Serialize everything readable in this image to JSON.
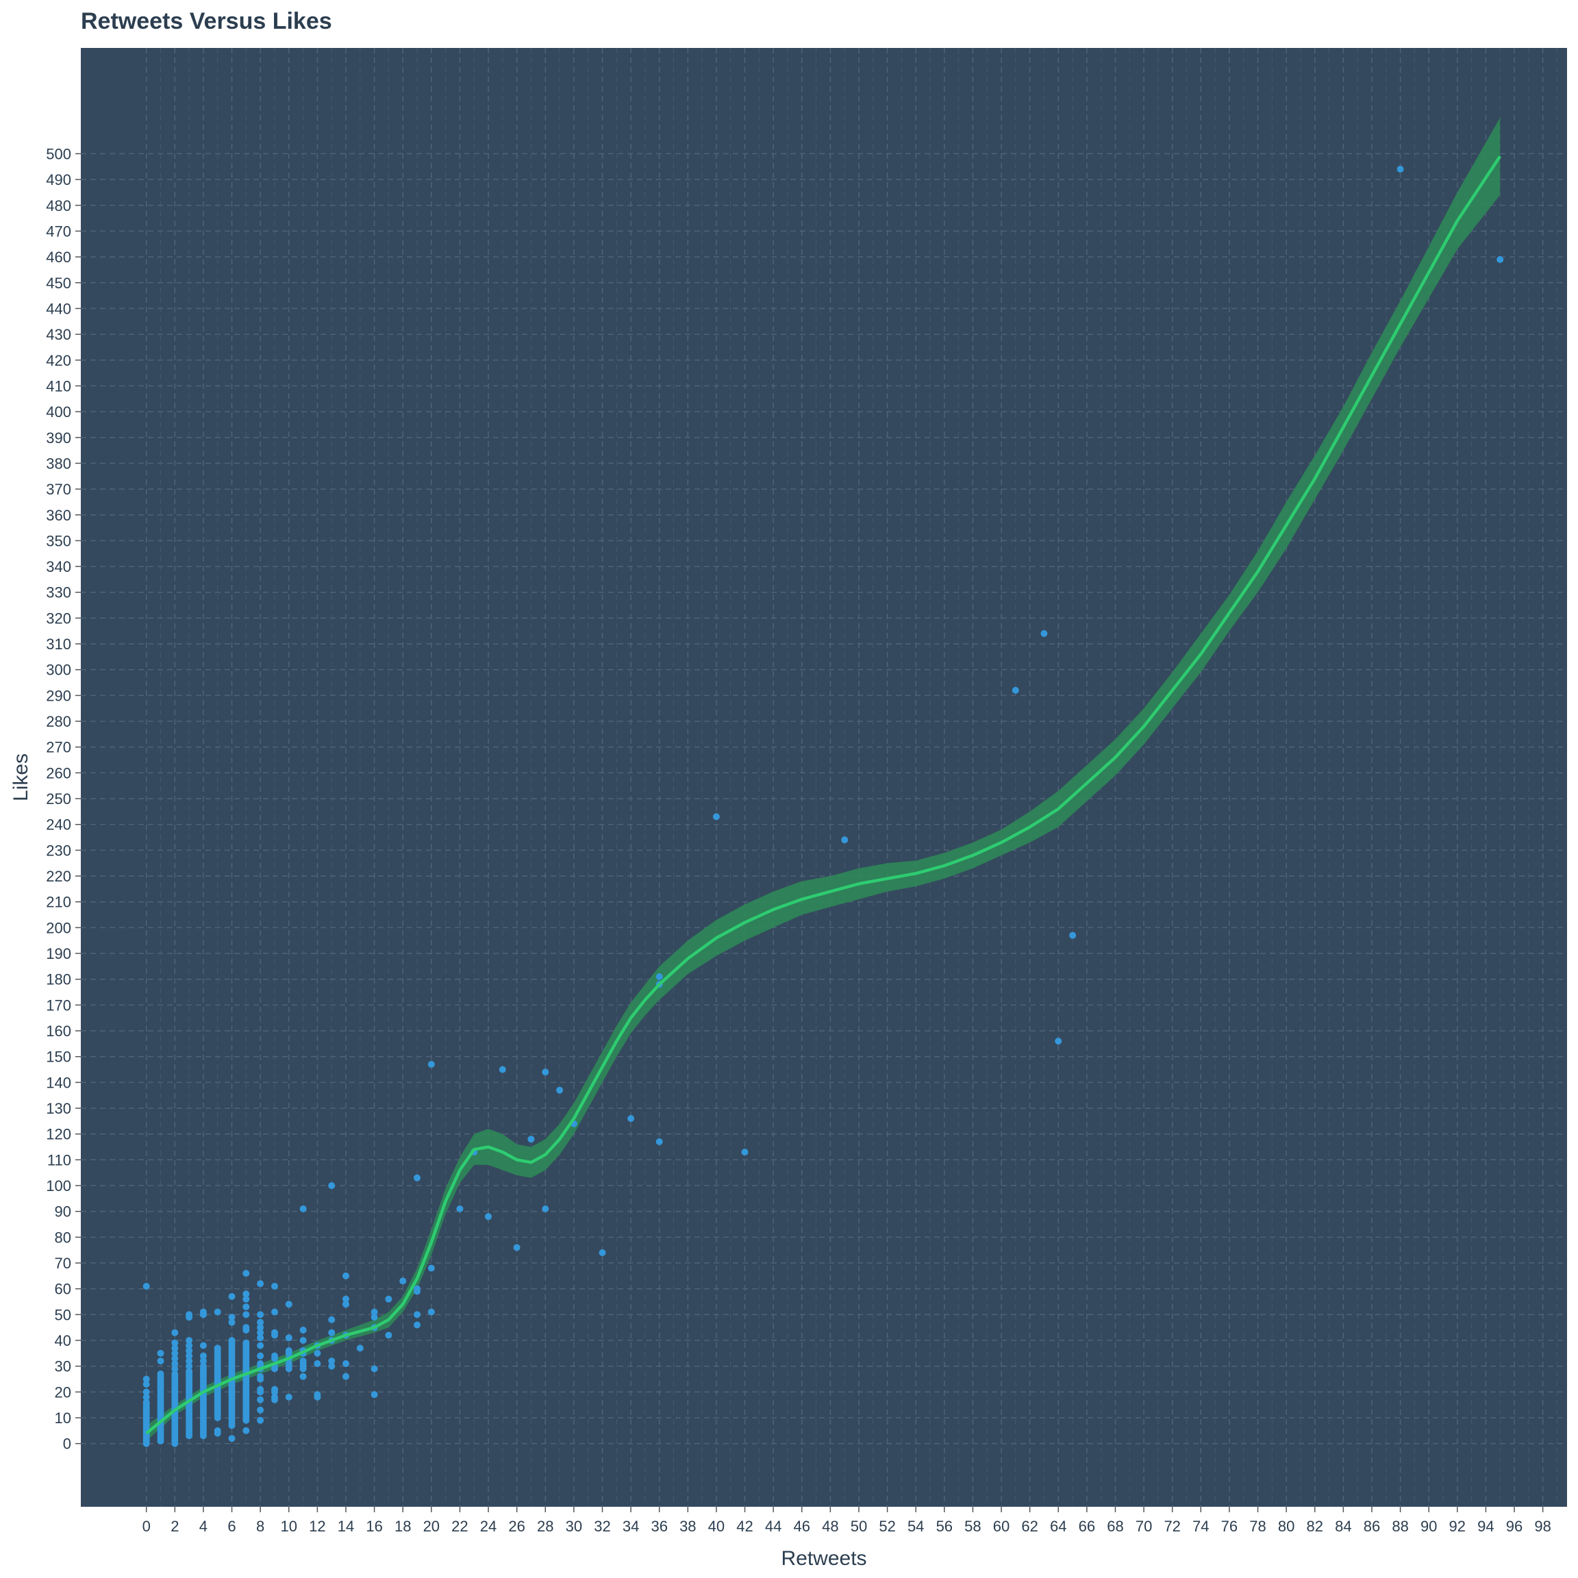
{
  "colors": {
    "panel": "#34495e",
    "grid": "#4f6378",
    "points": "#3498db",
    "smooth_line": "#2ecc71",
    "ci_band": "#2e8b57",
    "text": "#2c3e50"
  },
  "chart_data": {
    "type": "scatter",
    "title": "Retweets Versus Likes",
    "xlabel": "Retweets",
    "ylabel": "Likes",
    "xlim": [
      -4.6,
      99.7
    ],
    "ylim": [
      -24.5,
      541
    ],
    "grid": true,
    "x_ticks": [
      0,
      2,
      4,
      6,
      8,
      10,
      12,
      14,
      16,
      18,
      20,
      22,
      24,
      26,
      28,
      30,
      32,
      34,
      36,
      38,
      40,
      42,
      44,
      46,
      48,
      50,
      52,
      54,
      56,
      58,
      60,
      62,
      64,
      66,
      68,
      70,
      72,
      74,
      76,
      78,
      80,
      82,
      84,
      86,
      88,
      90,
      92,
      94,
      96,
      98
    ],
    "y_ticks": [
      0,
      10,
      20,
      30,
      40,
      50,
      60,
      70,
      80,
      90,
      100,
      110,
      120,
      130,
      140,
      150,
      160,
      170,
      180,
      190,
      200,
      210,
      220,
      230,
      240,
      250,
      260,
      270,
      280,
      290,
      300,
      310,
      320,
      330,
      340,
      350,
      360,
      370,
      380,
      390,
      400,
      410,
      420,
      430,
      440,
      450,
      460,
      470,
      480,
      490,
      500
    ],
    "points": [
      [
        0,
        0
      ],
      [
        0,
        1
      ],
      [
        0,
        2
      ],
      [
        0,
        3
      ],
      [
        0,
        4
      ],
      [
        0,
        5
      ],
      [
        0,
        6
      ],
      [
        0,
        7
      ],
      [
        0,
        8
      ],
      [
        0,
        9
      ],
      [
        0,
        10
      ],
      [
        0,
        11
      ],
      [
        0,
        12
      ],
      [
        0,
        13
      ],
      [
        0,
        14
      ],
      [
        0,
        15
      ],
      [
        0,
        16
      ],
      [
        0,
        18
      ],
      [
        0,
        20
      ],
      [
        0,
        23
      ],
      [
        0,
        25
      ],
      [
        0,
        61
      ],
      [
        1,
        1
      ],
      [
        1,
        2
      ],
      [
        1,
        3
      ],
      [
        1,
        4
      ],
      [
        1,
        5
      ],
      [
        1,
        6
      ],
      [
        1,
        7
      ],
      [
        1,
        8
      ],
      [
        1,
        9
      ],
      [
        1,
        10
      ],
      [
        1,
        11
      ],
      [
        1,
        12
      ],
      [
        1,
        13
      ],
      [
        1,
        14
      ],
      [
        1,
        15
      ],
      [
        1,
        16
      ],
      [
        1,
        17
      ],
      [
        1,
        18
      ],
      [
        1,
        19
      ],
      [
        1,
        20
      ],
      [
        1,
        21
      ],
      [
        1,
        22
      ],
      [
        1,
        23
      ],
      [
        1,
        24
      ],
      [
        1,
        25
      ],
      [
        1,
        26
      ],
      [
        1,
        27
      ],
      [
        1,
        32
      ],
      [
        1,
        35
      ],
      [
        2,
        0
      ],
      [
        2,
        1
      ],
      [
        2,
        2
      ],
      [
        2,
        3
      ],
      [
        2,
        4
      ],
      [
        2,
        5
      ],
      [
        2,
        6
      ],
      [
        2,
        7
      ],
      [
        2,
        8
      ],
      [
        2,
        9
      ],
      [
        2,
        10
      ],
      [
        2,
        11
      ],
      [
        2,
        12
      ],
      [
        2,
        13
      ],
      [
        2,
        14
      ],
      [
        2,
        15
      ],
      [
        2,
        16
      ],
      [
        2,
        17
      ],
      [
        2,
        18
      ],
      [
        2,
        19
      ],
      [
        2,
        20
      ],
      [
        2,
        21
      ],
      [
        2,
        22
      ],
      [
        2,
        23
      ],
      [
        2,
        24
      ],
      [
        2,
        25
      ],
      [
        2,
        26
      ],
      [
        2,
        27
      ],
      [
        2,
        29
      ],
      [
        2,
        31
      ],
      [
        2,
        33
      ],
      [
        2,
        35
      ],
      [
        2,
        37
      ],
      [
        2,
        39
      ],
      [
        2,
        43
      ],
      [
        3,
        3
      ],
      [
        3,
        4
      ],
      [
        3,
        5
      ],
      [
        3,
        6
      ],
      [
        3,
        7
      ],
      [
        3,
        8
      ],
      [
        3,
        9
      ],
      [
        3,
        10
      ],
      [
        3,
        11
      ],
      [
        3,
        12
      ],
      [
        3,
        13
      ],
      [
        3,
        14
      ],
      [
        3,
        15
      ],
      [
        3,
        16
      ],
      [
        3,
        17
      ],
      [
        3,
        18
      ],
      [
        3,
        19
      ],
      [
        3,
        20
      ],
      [
        3,
        21
      ],
      [
        3,
        22
      ],
      [
        3,
        23
      ],
      [
        3,
        24
      ],
      [
        3,
        25
      ],
      [
        3,
        26
      ],
      [
        3,
        27
      ],
      [
        3,
        28
      ],
      [
        3,
        30
      ],
      [
        3,
        32
      ],
      [
        3,
        34
      ],
      [
        3,
        36
      ],
      [
        3,
        38
      ],
      [
        3,
        40
      ],
      [
        3,
        49
      ],
      [
        3,
        50
      ],
      [
        4,
        3
      ],
      [
        4,
        4
      ],
      [
        4,
        5
      ],
      [
        4,
        6
      ],
      [
        4,
        7
      ],
      [
        4,
        8
      ],
      [
        4,
        9
      ],
      [
        4,
        10
      ],
      [
        4,
        11
      ],
      [
        4,
        12
      ],
      [
        4,
        13
      ],
      [
        4,
        14
      ],
      [
        4,
        15
      ],
      [
        4,
        16
      ],
      [
        4,
        17
      ],
      [
        4,
        18
      ],
      [
        4,
        19
      ],
      [
        4,
        20
      ],
      [
        4,
        21
      ],
      [
        4,
        22
      ],
      [
        4,
        23
      ],
      [
        4,
        24
      ],
      [
        4,
        25
      ],
      [
        4,
        26
      ],
      [
        4,
        27
      ],
      [
        4,
        28
      ],
      [
        4,
        29
      ],
      [
        4,
        30
      ],
      [
        4,
        32
      ],
      [
        4,
        34
      ],
      [
        4,
        38
      ],
      [
        4,
        50
      ],
      [
        4,
        51
      ],
      [
        5,
        4
      ],
      [
        5,
        5
      ],
      [
        5,
        10
      ],
      [
        5,
        11
      ],
      [
        5,
        12
      ],
      [
        5,
        13
      ],
      [
        5,
        14
      ],
      [
        5,
        15
      ],
      [
        5,
        16
      ],
      [
        5,
        17
      ],
      [
        5,
        18
      ],
      [
        5,
        19
      ],
      [
        5,
        20
      ],
      [
        5,
        21
      ],
      [
        5,
        22
      ],
      [
        5,
        23
      ],
      [
        5,
        24
      ],
      [
        5,
        25
      ],
      [
        5,
        26
      ],
      [
        5,
        27
      ],
      [
        5,
        28
      ],
      [
        5,
        29
      ],
      [
        5,
        30
      ],
      [
        5,
        31
      ],
      [
        5,
        32
      ],
      [
        5,
        33
      ],
      [
        5,
        34
      ],
      [
        5,
        35
      ],
      [
        5,
        36
      ],
      [
        5,
        37
      ],
      [
        5,
        51
      ],
      [
        6,
        2
      ],
      [
        6,
        7
      ],
      [
        6,
        8
      ],
      [
        6,
        9
      ],
      [
        6,
        10
      ],
      [
        6,
        11
      ],
      [
        6,
        12
      ],
      [
        6,
        13
      ],
      [
        6,
        14
      ],
      [
        6,
        15
      ],
      [
        6,
        16
      ],
      [
        6,
        17
      ],
      [
        6,
        18
      ],
      [
        6,
        19
      ],
      [
        6,
        20
      ],
      [
        6,
        21
      ],
      [
        6,
        22
      ],
      [
        6,
        23
      ],
      [
        6,
        24
      ],
      [
        6,
        25
      ],
      [
        6,
        26
      ],
      [
        6,
        27
      ],
      [
        6,
        28
      ],
      [
        6,
        29
      ],
      [
        6,
        30
      ],
      [
        6,
        31
      ],
      [
        6,
        32
      ],
      [
        6,
        33
      ],
      [
        6,
        34
      ],
      [
        6,
        35
      ],
      [
        6,
        36
      ],
      [
        6,
        37
      ],
      [
        6,
        38
      ],
      [
        6,
        39
      ],
      [
        6,
        40
      ],
      [
        6,
        47
      ],
      [
        6,
        49
      ],
      [
        6,
        57
      ],
      [
        7,
        5
      ],
      [
        7,
        9
      ],
      [
        7,
        10
      ],
      [
        7,
        11
      ],
      [
        7,
        12
      ],
      [
        7,
        13
      ],
      [
        7,
        14
      ],
      [
        7,
        15
      ],
      [
        7,
        16
      ],
      [
        7,
        17
      ],
      [
        7,
        18
      ],
      [
        7,
        19
      ],
      [
        7,
        20
      ],
      [
        7,
        21
      ],
      [
        7,
        22
      ],
      [
        7,
        23
      ],
      [
        7,
        24
      ],
      [
        7,
        25
      ],
      [
        7,
        26
      ],
      [
        7,
        27
      ],
      [
        7,
        28
      ],
      [
        7,
        29
      ],
      [
        7,
        30
      ],
      [
        7,
        31
      ],
      [
        7,
        32
      ],
      [
        7,
        33
      ],
      [
        7,
        34
      ],
      [
        7,
        35
      ],
      [
        7,
        36
      ],
      [
        7,
        37
      ],
      [
        7,
        38
      ],
      [
        7,
        39
      ],
      [
        7,
        44
      ],
      [
        7,
        45
      ],
      [
        7,
        50
      ],
      [
        7,
        53
      ],
      [
        7,
        56
      ],
      [
        7,
        58
      ],
      [
        7,
        66
      ],
      [
        8,
        9
      ],
      [
        8,
        13
      ],
      [
        8,
        17
      ],
      [
        8,
        20
      ],
      [
        8,
        21
      ],
      [
        8,
        25
      ],
      [
        8,
        26
      ],
      [
        8,
        29
      ],
      [
        8,
        30
      ],
      [
        8,
        31
      ],
      [
        8,
        34
      ],
      [
        8,
        38
      ],
      [
        8,
        41
      ],
      [
        8,
        43
      ],
      [
        8,
        45
      ],
      [
        8,
        47
      ],
      [
        8,
        50
      ],
      [
        8,
        62
      ],
      [
        9,
        17
      ],
      [
        9,
        18
      ],
      [
        9,
        20
      ],
      [
        9,
        21
      ],
      [
        9,
        29
      ],
      [
        9,
        30
      ],
      [
        9,
        33
      ],
      [
        9,
        34
      ],
      [
        9,
        42
      ],
      [
        9,
        43
      ],
      [
        9,
        51
      ],
      [
        9,
        61
      ],
      [
        10,
        18
      ],
      [
        10,
        29
      ],
      [
        10,
        30
      ],
      [
        10,
        31
      ],
      [
        10,
        33
      ],
      [
        10,
        35
      ],
      [
        10,
        36
      ],
      [
        10,
        41
      ],
      [
        10,
        54
      ],
      [
        11,
        26
      ],
      [
        11,
        29
      ],
      [
        11,
        30
      ],
      [
        11,
        31
      ],
      [
        11,
        32
      ],
      [
        11,
        35
      ],
      [
        11,
        36
      ],
      [
        11,
        40
      ],
      [
        11,
        44
      ],
      [
        11,
        91
      ],
      [
        12,
        18
      ],
      [
        12,
        19
      ],
      [
        12,
        31
      ],
      [
        12,
        35
      ],
      [
        12,
        38
      ],
      [
        13,
        30
      ],
      [
        13,
        32
      ],
      [
        13,
        40
      ],
      [
        13,
        43
      ],
      [
        13,
        48
      ],
      [
        13,
        100
      ],
      [
        14,
        26
      ],
      [
        14,
        31
      ],
      [
        14,
        42
      ],
      [
        14,
        54
      ],
      [
        14,
        56
      ],
      [
        14,
        65
      ],
      [
        15,
        37
      ],
      [
        16,
        19
      ],
      [
        16,
        29
      ],
      [
        16,
        45
      ],
      [
        16,
        49
      ],
      [
        16,
        51
      ],
      [
        17,
        42
      ],
      [
        17,
        56
      ],
      [
        18,
        63
      ],
      [
        19,
        46
      ],
      [
        19,
        50
      ],
      [
        19,
        59
      ],
      [
        19,
        60
      ],
      [
        19,
        103
      ],
      [
        20,
        51
      ],
      [
        20,
        68
      ],
      [
        20,
        147
      ],
      [
        22,
        91
      ],
      [
        23,
        113
      ],
      [
        24,
        88
      ],
      [
        25,
        145
      ],
      [
        26,
        76
      ],
      [
        27,
        118
      ],
      [
        28,
        91
      ],
      [
        28,
        144
      ],
      [
        29,
        137
      ],
      [
        30,
        124
      ],
      [
        32,
        74
      ],
      [
        34,
        126
      ],
      [
        36,
        117
      ],
      [
        36,
        178
      ],
      [
        36,
        181
      ],
      [
        40,
        243
      ],
      [
        42,
        113
      ],
      [
        49,
        234
      ],
      [
        61,
        292
      ],
      [
        63,
        314
      ],
      [
        64,
        156
      ],
      [
        65,
        197
      ],
      [
        88,
        494
      ],
      [
        95,
        459
      ]
    ],
    "smooth": {
      "x": [
        0,
        2,
        4,
        6,
        8,
        10,
        12,
        14,
        16,
        17,
        18,
        19,
        20,
        21,
        22,
        23,
        24,
        25,
        26,
        27,
        28,
        29,
        30,
        31,
        32,
        33,
        34,
        35,
        36,
        38,
        40,
        42,
        44,
        46,
        48,
        50,
        52,
        54,
        56,
        58,
        60,
        62,
        64,
        66,
        68,
        70,
        72,
        74,
        76,
        78,
        80,
        82,
        84,
        86,
        88,
        90,
        92,
        95
      ],
      "y": [
        4,
        13,
        20,
        25,
        29,
        33,
        38,
        42,
        45,
        48,
        54,
        64,
        78,
        94,
        106,
        114,
        115,
        113,
        110,
        109,
        112,
        118,
        126,
        136,
        146,
        156,
        165,
        172,
        178,
        188,
        196,
        202,
        207,
        211,
        214,
        217,
        219,
        221,
        224,
        228,
        233,
        239,
        246,
        256,
        266,
        278,
        292,
        306,
        322,
        338,
        356,
        374,
        394,
        414,
        434,
        454,
        474,
        499
      ],
      "lower": [
        1,
        11,
        18,
        23,
        27,
        31,
        36,
        40,
        43,
        45,
        51,
        60,
        73,
        89,
        101,
        108,
        108,
        106,
        104,
        103,
        106,
        112,
        120,
        130,
        140,
        150,
        159,
        166,
        172,
        182,
        189,
        195,
        200,
        205,
        208,
        211,
        214,
        216,
        219,
        223,
        228,
        233,
        239,
        249,
        259,
        271,
        285,
        299,
        315,
        330,
        347,
        366,
        385,
        405,
        425,
        444,
        463,
        484
      ],
      "upper": [
        7,
        15,
        22,
        27,
        31,
        35,
        40,
        44,
        48,
        51,
        57,
        68,
        83,
        99,
        111,
        120,
        122,
        120,
        116,
        115,
        118,
        124,
        132,
        142,
        152,
        162,
        171,
        178,
        185,
        195,
        203,
        209,
        214,
        218,
        220,
        223,
        225,
        226,
        229,
        233,
        238,
        245,
        253,
        263,
        273,
        285,
        299,
        314,
        329,
        346,
        365,
        383,
        402,
        423,
        443,
        464,
        485,
        514
      ]
    }
  }
}
